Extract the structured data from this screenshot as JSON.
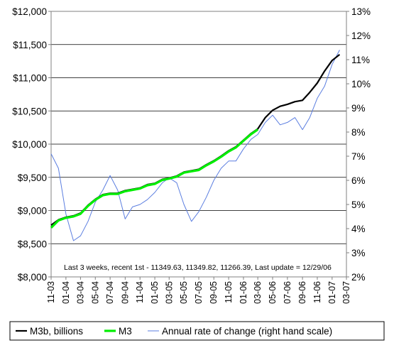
{
  "chart_data": {
    "type": "line",
    "annotation": "Last 3 weeks, recent 1st - 11349.63, 11349.82, 11266.39, Last update = 12/29/06",
    "y_left": {
      "min": 8000,
      "max": 12000,
      "step": 500,
      "tick_labels": [
        "$8,000",
        "$8,500",
        "$9,000",
        "$9,500",
        "$10,000",
        "$10,500",
        "$11,000",
        "$11,500",
        "$12,000"
      ]
    },
    "y_right": {
      "min": 2,
      "max": 13,
      "step": 1,
      "tick_labels": [
        "2%",
        "3%",
        "4%",
        "5%",
        "6%",
        "7%",
        "8%",
        "9%",
        "10%",
        "11%",
        "12%",
        "13%"
      ]
    },
    "x_tick_labels": [
      "11-03",
      "01-04",
      "03-04",
      "05-04",
      "07-04",
      "09-04",
      "11-04",
      "01-05",
      "03-05",
      "05-05",
      "07-05",
      "09-05",
      "11-05",
      "01-06",
      "03-06",
      "05-06",
      "07-06",
      "09-06",
      "11-06",
      "01-07",
      "03-07"
    ],
    "x_ticks_dates": [
      "2003-11",
      "2004-01",
      "2004-03",
      "2004-05",
      "2004-07",
      "2004-09",
      "2004-11",
      "2005-01",
      "2005-03",
      "2005-05",
      "2005-07",
      "2005-09",
      "2005-11",
      "2006-01",
      "2006-03",
      "2006-05",
      "2006-07",
      "2006-09",
      "2006-11",
      "2007-01",
      "2007-03"
    ],
    "gridlines": "horizontal",
    "legend_position": "bottom",
    "series": [
      {
        "name": "M3b, billions",
        "color": "#000000",
        "axis": "left",
        "points": [
          [
            "2003-11-01",
            8780
          ],
          [
            "2003-12-01",
            8860
          ],
          [
            "2004-01-01",
            8900
          ],
          [
            "2004-02-01",
            8920
          ],
          [
            "2004-03-01",
            8960
          ],
          [
            "2004-04-01",
            9080
          ],
          [
            "2004-05-01",
            9170
          ],
          [
            "2004-06-01",
            9240
          ],
          [
            "2004-07-01",
            9260
          ],
          [
            "2004-08-01",
            9260
          ],
          [
            "2004-09-01",
            9300
          ],
          [
            "2004-10-01",
            9320
          ],
          [
            "2004-11-01",
            9340
          ],
          [
            "2004-12-01",
            9390
          ],
          [
            "2005-01-01",
            9410
          ],
          [
            "2005-02-01",
            9470
          ],
          [
            "2005-03-01",
            9490
          ],
          [
            "2005-04-01",
            9520
          ],
          [
            "2005-05-01",
            9580
          ],
          [
            "2005-06-01",
            9600
          ],
          [
            "2005-07-01",
            9620
          ],
          [
            "2005-08-01",
            9690
          ],
          [
            "2005-09-01",
            9750
          ],
          [
            "2005-10-01",
            9820
          ],
          [
            "2005-11-01",
            9900
          ],
          [
            "2005-12-01",
            9960
          ],
          [
            "2006-01-01",
            10060
          ],
          [
            "2006-02-01",
            10160
          ],
          [
            "2006-03-01",
            10230
          ],
          [
            "2006-04-01",
            10400
          ],
          [
            "2006-05-01",
            10510
          ],
          [
            "2006-06-01",
            10570
          ],
          [
            "2006-07-01",
            10600
          ],
          [
            "2006-08-01",
            10640
          ],
          [
            "2006-09-01",
            10660
          ],
          [
            "2006-10-01",
            10780
          ],
          [
            "2006-11-01",
            10920
          ],
          [
            "2006-12-01",
            11100
          ],
          [
            "2007-01-01",
            11260
          ],
          [
            "2007-02-01",
            11349.63
          ]
        ]
      },
      {
        "name": "M3",
        "color": "#00ee00",
        "axis": "left",
        "points": [
          [
            "2003-11-01",
            8740
          ],
          [
            "2003-12-01",
            8850
          ],
          [
            "2004-01-01",
            8890
          ],
          [
            "2004-02-01",
            8910
          ],
          [
            "2004-03-01",
            8950
          ],
          [
            "2004-04-01",
            9070
          ],
          [
            "2004-05-01",
            9160
          ],
          [
            "2004-06-01",
            9230
          ],
          [
            "2004-07-01",
            9250
          ],
          [
            "2004-08-01",
            9250
          ],
          [
            "2004-09-01",
            9290
          ],
          [
            "2004-10-01",
            9310
          ],
          [
            "2004-11-01",
            9330
          ],
          [
            "2004-12-01",
            9380
          ],
          [
            "2005-01-01",
            9400
          ],
          [
            "2005-02-01",
            9460
          ],
          [
            "2005-03-01",
            9480
          ],
          [
            "2005-04-01",
            9510
          ],
          [
            "2005-05-01",
            9570
          ],
          [
            "2005-06-01",
            9590
          ],
          [
            "2005-07-01",
            9610
          ],
          [
            "2005-08-01",
            9680
          ],
          [
            "2005-09-01",
            9740
          ],
          [
            "2005-10-01",
            9810
          ],
          [
            "2005-11-01",
            9890
          ],
          [
            "2005-12-01",
            9950
          ],
          [
            "2006-01-01",
            10050
          ],
          [
            "2006-02-01",
            10150
          ],
          [
            "2006-03-01",
            10220
          ]
        ]
      },
      {
        "name": "Annual rate of change (right hand scale)",
        "color": "#5b7ee0",
        "axis": "right",
        "points": [
          [
            "2003-11-01",
            7.1
          ],
          [
            "2003-12-01",
            6.5
          ],
          [
            "2004-01-01",
            4.6
          ],
          [
            "2004-02-01",
            3.5
          ],
          [
            "2004-03-01",
            3.7
          ],
          [
            "2004-04-01",
            4.3
          ],
          [
            "2004-05-01",
            5.1
          ],
          [
            "2004-06-01",
            5.6
          ],
          [
            "2004-07-01",
            6.2
          ],
          [
            "2004-08-01",
            5.6
          ],
          [
            "2004-09-01",
            4.4
          ],
          [
            "2004-10-01",
            4.9
          ],
          [
            "2004-11-01",
            5.0
          ],
          [
            "2004-12-01",
            5.2
          ],
          [
            "2005-01-01",
            5.5
          ],
          [
            "2005-02-01",
            5.9
          ],
          [
            "2005-03-01",
            6.1
          ],
          [
            "2005-04-01",
            5.9
          ],
          [
            "2005-05-01",
            5.0
          ],
          [
            "2005-06-01",
            4.3
          ],
          [
            "2005-07-01",
            4.7
          ],
          [
            "2005-08-01",
            5.3
          ],
          [
            "2005-09-01",
            6.0
          ],
          [
            "2005-10-01",
            6.5
          ],
          [
            "2005-11-01",
            6.8
          ],
          [
            "2005-12-01",
            6.8
          ],
          [
            "2006-01-01",
            7.3
          ],
          [
            "2006-02-01",
            7.7
          ],
          [
            "2006-03-01",
            7.9
          ],
          [
            "2006-04-01",
            8.4
          ],
          [
            "2006-05-01",
            8.7
          ],
          [
            "2006-06-01",
            8.3
          ],
          [
            "2006-07-01",
            8.4
          ],
          [
            "2006-08-01",
            8.6
          ],
          [
            "2006-09-01",
            8.1
          ],
          [
            "2006-10-01",
            8.6
          ],
          [
            "2006-11-01",
            9.4
          ],
          [
            "2006-12-01",
            9.9
          ],
          [
            "2007-01-01",
            10.8
          ],
          [
            "2007-02-01",
            11.4
          ]
        ]
      }
    ]
  }
}
